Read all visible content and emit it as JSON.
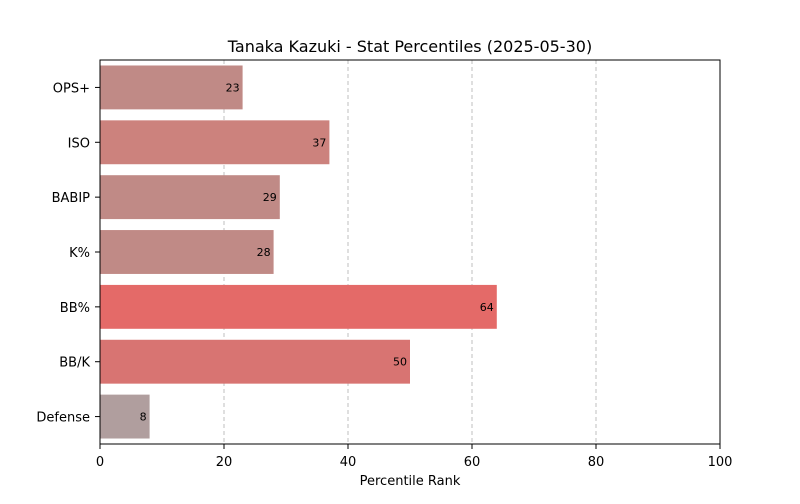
{
  "chart_data": {
    "type": "bar",
    "orientation": "horizontal",
    "title": "Tanaka Kazuki - Stat Percentiles (2025-05-30)",
    "xlabel": "Percentile Rank",
    "ylabel": "",
    "xlim": [
      0,
      100
    ],
    "xticks": [
      0,
      20,
      40,
      60,
      80,
      100
    ],
    "grid": "x-dashed",
    "categories": [
      "OPS+",
      "ISO",
      "BABIP",
      "K%",
      "BB%",
      "BB/K",
      "Defense"
    ],
    "values": [
      23,
      37,
      29,
      28,
      64,
      50,
      8
    ],
    "colors": [
      "#c08a86",
      "#cc827d",
      "#c08a86",
      "#c08a86",
      "#e46a68",
      "#d87472",
      "#b09e9e"
    ]
  }
}
